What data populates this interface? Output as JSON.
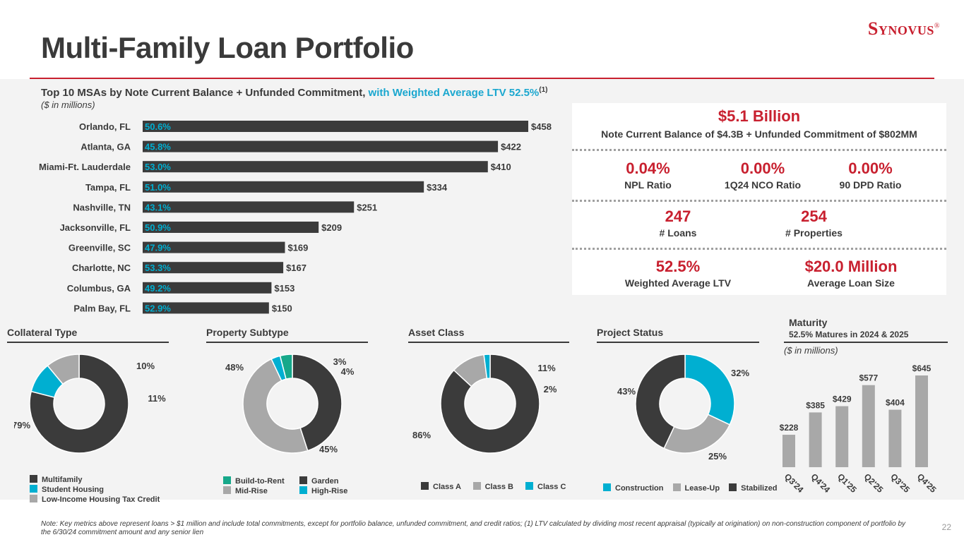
{
  "page": {
    "title": "Multi-Family Loan Portfolio",
    "logo": "Synovus",
    "logo_mark": "®",
    "page_number": "22",
    "note": "Note: Key metrics above represent loans > $1 million and include total commitments, except for portfolio balance, unfunded commitment, and credit ratios;  (1) LTV calculated by dividing most recent appraisal (typically at origination) on non-construction component of portfolio by the 6/30/24 commitment amount and any senior lien"
  },
  "msa_header": {
    "text": "Top 10 MSAs by Note Current Balance + Unfunded Commitment,",
    "accent": "with Weighted Average LTV 52.5%",
    "footnote": "(1)",
    "unit": "($ in millions)"
  },
  "stats": {
    "headline_value": "$5.1 Billion",
    "headline_label": "Note Current Balance of $4.3B + Unfunded Commitment of $802MM",
    "npl_value": "0.04%",
    "npl_label": "NPL Ratio",
    "nco_value": "0.00%",
    "nco_label": "1Q24 NCO Ratio",
    "dpd_value": "0.00%",
    "dpd_label": "90 DPD Ratio",
    "loans_value": "247",
    "loans_label": "# Loans",
    "props_value": "254",
    "props_label": "# Properties",
    "ltv_value": "52.5%",
    "ltv_label": "Weighted Average LTV",
    "size_value": "$20.0 Million",
    "size_label": "Average Loan Size"
  },
  "sections": {
    "collateral": "Collateral Type",
    "subtype": "Property Subtype",
    "asset": "Asset Class",
    "project": "Project Status",
    "maturity": "Maturity",
    "maturity_sub": "52.5% Matures in 2024 & 2025",
    "maturity_unit": "($ in millions)"
  },
  "colors": {
    "dark": "#3b3b3b",
    "teal": "#00afd1",
    "gray": "#a8a8a8",
    "green": "#16a88a",
    "red": "#c8202f"
  },
  "chart_data": [
    {
      "type": "bar",
      "orientation": "horizontal",
      "title": "Top 10 MSAs by Note Current Balance + Unfunded Commitment",
      "categories": [
        "Orlando, FL",
        "Atlanta, GA",
        "Miami-Ft. Lauderdale",
        "Tampa, FL",
        "Nashville, TN",
        "Jacksonville, FL",
        "Greenville, SC",
        "Charlotte, NC",
        "Columbus, GA",
        "Palm Bay, FL"
      ],
      "values": [
        458,
        422,
        410,
        334,
        251,
        209,
        169,
        167,
        153,
        150
      ],
      "value_labels": [
        "$458",
        "$422",
        "$410",
        "$334",
        "$251",
        "$209",
        "$169",
        "$167",
        "$153",
        "$150"
      ],
      "ltv_labels": [
        "50.6%",
        "45.8%",
        "53.0%",
        "51.0%",
        "43.1%",
        "50.9%",
        "47.9%",
        "53.3%",
        "49.2%",
        "52.9%"
      ],
      "xlim": [
        0,
        458
      ]
    },
    {
      "type": "pie",
      "title": "Collateral Type",
      "categories": [
        "Multifamily",
        "Student Housing",
        "Low-Income Housing Tax Credit"
      ],
      "values": [
        79,
        10,
        11
      ],
      "labels": [
        "79%",
        "10%",
        "11%"
      ],
      "colors": [
        "#3b3b3b",
        "#00afd1",
        "#a8a8a8"
      ]
    },
    {
      "type": "pie",
      "title": "Property Subtype",
      "categories": [
        "Garden",
        "Mid-Rise",
        "High-Rise",
        "Build-to-Rent"
      ],
      "values": [
        45,
        48,
        3,
        4
      ],
      "labels": [
        "45%",
        "48%",
        "3%",
        "4%"
      ],
      "colors": [
        "#3b3b3b",
        "#a8a8a8",
        "#00afd1",
        "#16a88a"
      ],
      "legend": [
        "Build-to-Rent",
        "Garden",
        "Mid-Rise",
        "High-Rise"
      ]
    },
    {
      "type": "pie",
      "title": "Asset Class",
      "categories": [
        "Class A",
        "Class B",
        "Class C"
      ],
      "values": [
        86,
        11,
        2
      ],
      "labels": [
        "86%",
        "11%",
        "2%"
      ],
      "colors": [
        "#3b3b3b",
        "#a8a8a8",
        "#00afd1"
      ]
    },
    {
      "type": "pie",
      "title": "Project Status",
      "categories": [
        "Construction",
        "Lease-Up",
        "Stabilized"
      ],
      "values": [
        32,
        25,
        43
      ],
      "labels": [
        "32%",
        "25%",
        "43%"
      ],
      "colors": [
        "#00afd1",
        "#a8a8a8",
        "#3b3b3b"
      ]
    },
    {
      "type": "bar",
      "title": "Maturity",
      "subtitle": "52.5% Matures in 2024 & 2025",
      "ylabel": "($ in millions)",
      "categories": [
        "Q3'24",
        "Q4'24",
        "Q1'25",
        "Q2'25",
        "Q3'25",
        "Q4'25"
      ],
      "values": [
        228,
        385,
        429,
        577,
        404,
        645
      ],
      "value_labels": [
        "$228",
        "$385",
        "$429",
        "$577",
        "$404",
        "$645"
      ],
      "ylim": [
        0,
        645
      ]
    }
  ]
}
